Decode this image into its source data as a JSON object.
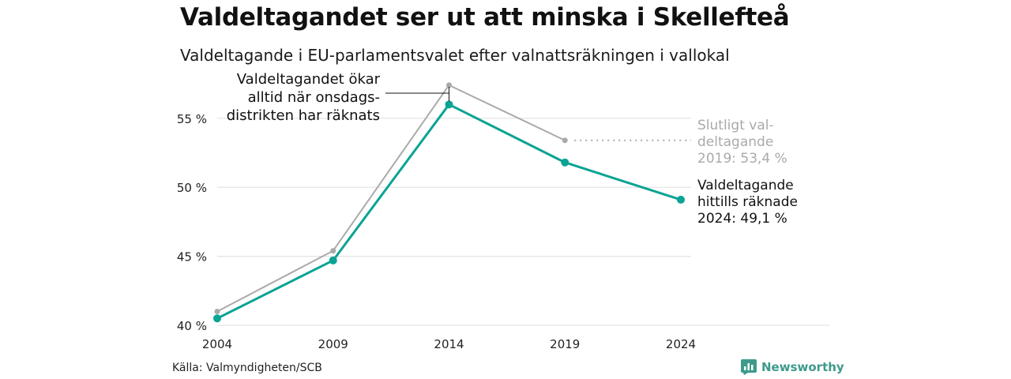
{
  "title": "Valdeltagandet ser ut att minska i Skellefteå",
  "subtitle": "Valdeltagande i EU-parlamentsvalet efter valnattsräkningen i vallokal",
  "source": "Källa: Valmyndigheten/SCB",
  "brand": {
    "name": "Newsworthy",
    "icon": "bar-chart-icon",
    "color": "#3d9a8b"
  },
  "colors": {
    "final": "#aaaaaa",
    "counted": "#0aa394",
    "grid": "#e3e3e3"
  },
  "chart_data": {
    "type": "line",
    "x": [
      "2004",
      "2009",
      "2014",
      "2019",
      "2024"
    ],
    "ylim": [
      40,
      57.5
    ],
    "yticks": [
      40,
      45,
      50,
      55
    ],
    "ytick_labels": [
      "40 %",
      "45 %",
      "50 %",
      "55 %"
    ],
    "grid": true,
    "series": [
      {
        "key": "final",
        "values": [
          41.0,
          45.4,
          57.4,
          53.4,
          null
        ]
      },
      {
        "key": "counted",
        "values": [
          40.5,
          44.7,
          56.0,
          51.8,
          49.1
        ]
      }
    ],
    "annotations": {
      "left": [
        "Valdeltagandet ökar",
        "alltid när onsdags-",
        "distrikten har räknats"
      ],
      "final": [
        "Slutligt val-",
        "deltagande",
        "2019: 53,4 %"
      ],
      "counted": [
        "Valdeltagande",
        "hittills räknade",
        "2024: 49,1 %"
      ]
    }
  }
}
